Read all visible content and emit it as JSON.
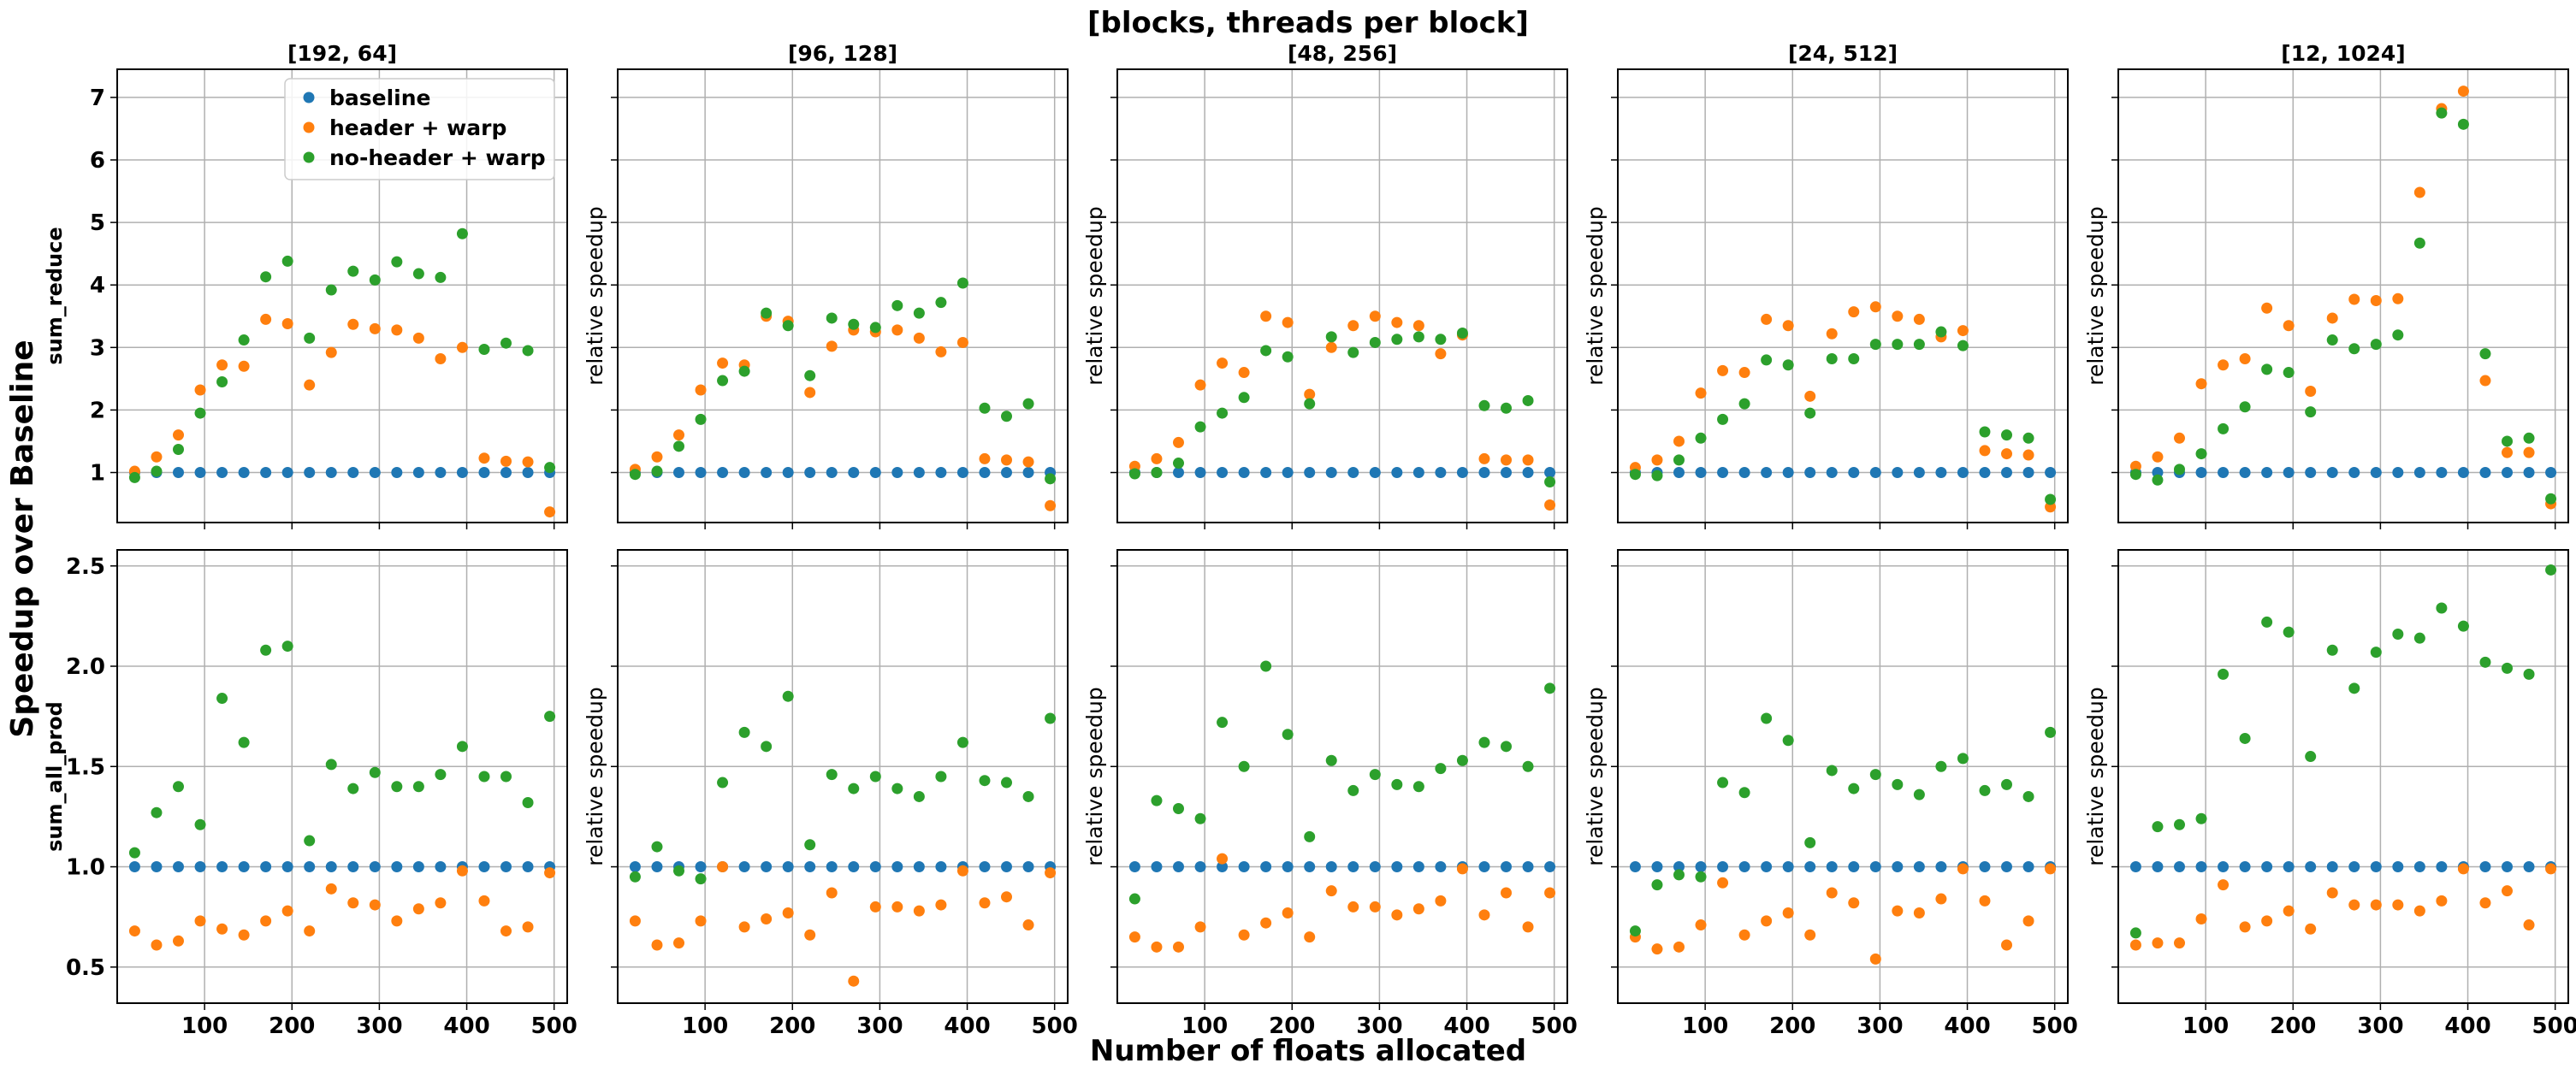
{
  "figure": {
    "suptitle": "[blocks, threads per block]",
    "supxlabel": "Number of floats allocated",
    "supylabel": "Speedup over Baseline"
  },
  "colors": {
    "baseline": "#1f77b4",
    "header_warp": "#ff7f0e",
    "noheader_warp": "#2ca02c",
    "grid": "#b0b0b0",
    "axes": "#000000"
  },
  "legend": {
    "placement": "upper-right of first panel",
    "entries": [
      "baseline",
      "header + warp",
      "no-header + warp"
    ]
  },
  "chart_data": {
    "type": "scatter",
    "grid": true,
    "x": [
      20,
      45,
      70,
      95,
      120,
      145,
      170,
      195,
      220,
      245,
      270,
      295,
      320,
      345,
      370,
      395,
      420,
      445,
      470,
      495
    ],
    "x_ticks": [
      100,
      200,
      300,
      400,
      500
    ],
    "x_tick_labels": [
      "100",
      "200",
      "300",
      "400",
      "500"
    ],
    "xlim": [
      0,
      515
    ],
    "columns": [
      "[192, 64]",
      "[96, 128]",
      "[48, 256]",
      "[24, 512]",
      "[12, 1024]"
    ],
    "rows": [
      {
        "label": "sum_reduce",
        "ylabel": "relative speedup",
        "ylim": [
          0.2,
          7.45
        ],
        "y_ticks": [
          1,
          2,
          3,
          4,
          5,
          6,
          7
        ],
        "y_tick_labels": [
          "1",
          "2",
          "3",
          "4",
          "5",
          "6",
          "7"
        ]
      },
      {
        "label": "sum_all_prod",
        "ylabel": "relative speedup",
        "ylim": [
          0.32,
          2.58
        ],
        "y_ticks": [
          0.5,
          1.0,
          1.5,
          2.0,
          2.5
        ],
        "y_tick_labels": [
          "0.5",
          "1.0",
          "1.5",
          "2.0",
          "2.5"
        ]
      }
    ],
    "panels": [
      {
        "row": 0,
        "col": 0,
        "series": [
          {
            "name": "baseline",
            "values": [
              1,
              1,
              1,
              1,
              1,
              1,
              1,
              1,
              1,
              1,
              1,
              1,
              1,
              1,
              1,
              1,
              1,
              1,
              1,
              1
            ]
          },
          {
            "name": "header + warp",
            "values": [
              1.02,
              1.25,
              1.6,
              2.32,
              2.72,
              2.7,
              3.45,
              3.38,
              2.4,
              2.92,
              3.37,
              3.3,
              3.28,
              3.15,
              2.82,
              3.0,
              1.23,
              1.18,
              1.17,
              0.37
            ]
          },
          {
            "name": "no-header + warp",
            "values": [
              0.92,
              1.02,
              1.37,
              1.95,
              2.45,
              3.12,
              4.13,
              4.38,
              3.15,
              3.92,
              4.22,
              4.08,
              4.37,
              4.18,
              4.12,
              4.82,
              2.97,
              3.07,
              2.95,
              1.08
            ]
          }
        ]
      },
      {
        "row": 0,
        "col": 1,
        "series": [
          {
            "name": "baseline",
            "values": [
              1,
              1,
              1,
              1,
              1,
              1,
              1,
              1,
              1,
              1,
              1,
              1,
              1,
              1,
              1,
              1,
              1,
              1,
              1,
              1
            ]
          },
          {
            "name": "header + warp",
            "values": [
              1.05,
              1.25,
              1.6,
              2.32,
              2.75,
              2.72,
              3.5,
              3.42,
              2.28,
              3.02,
              3.28,
              3.25,
              3.28,
              3.15,
              2.93,
              3.08,
              1.22,
              1.2,
              1.17,
              0.47
            ]
          },
          {
            "name": "no-header + warp",
            "values": [
              0.97,
              1.02,
              1.42,
              1.85,
              2.47,
              2.62,
              3.55,
              3.35,
              2.55,
              3.47,
              3.37,
              3.32,
              3.67,
              3.55,
              3.72,
              4.03,
              2.03,
              1.9,
              2.1,
              0.9
            ]
          }
        ]
      },
      {
        "row": 0,
        "col": 2,
        "series": [
          {
            "name": "baseline",
            "values": [
              1,
              1,
              1,
              1,
              1,
              1,
              1,
              1,
              1,
              1,
              1,
              1,
              1,
              1,
              1,
              1,
              1,
              1,
              1,
              1
            ]
          },
          {
            "name": "header + warp",
            "values": [
              1.1,
              1.22,
              1.48,
              2.4,
              2.75,
              2.6,
              3.5,
              3.4,
              2.25,
              3.0,
              3.35,
              3.5,
              3.4,
              3.35,
              2.9,
              3.2,
              1.22,
              1.2,
              1.2,
              0.48
            ]
          },
          {
            "name": "no-header + warp",
            "values": [
              0.98,
              1.0,
              1.15,
              1.73,
              1.95,
              2.2,
              2.95,
              2.85,
              2.1,
              3.17,
              2.92,
              3.08,
              3.13,
              3.17,
              3.13,
              3.23,
              2.07,
              2.03,
              2.15,
              0.85
            ]
          }
        ]
      },
      {
        "row": 0,
        "col": 3,
        "series": [
          {
            "name": "baseline",
            "values": [
              1,
              1,
              1,
              1,
              1,
              1,
              1,
              1,
              1,
              1,
              1,
              1,
              1,
              1,
              1,
              1,
              1,
              1,
              1,
              1
            ]
          },
          {
            "name": "header + warp",
            "values": [
              1.08,
              1.2,
              1.5,
              2.27,
              2.63,
              2.6,
              3.45,
              3.35,
              2.22,
              3.22,
              3.57,
              3.65,
              3.5,
              3.45,
              3.17,
              3.27,
              1.35,
              1.3,
              1.28,
              0.45
            ]
          },
          {
            "name": "no-header + warp",
            "values": [
              0.97,
              0.95,
              1.2,
              1.55,
              1.85,
              2.1,
              2.8,
              2.72,
              1.95,
              2.82,
              2.82,
              3.05,
              3.05,
              3.05,
              3.25,
              3.03,
              1.65,
              1.6,
              1.55,
              0.57
            ]
          }
        ]
      },
      {
        "row": 0,
        "col": 4,
        "series": [
          {
            "name": "baseline",
            "values": [
              1,
              1,
              1,
              1,
              1,
              1,
              1,
              1,
              1,
              1,
              1,
              1,
              1,
              1,
              1,
              1,
              1,
              1,
              1,
              1
            ]
          },
          {
            "name": "header + warp",
            "values": [
              1.1,
              1.25,
              1.55,
              2.42,
              2.72,
              2.82,
              3.63,
              3.35,
              2.3,
              3.47,
              3.77,
              3.75,
              3.78,
              5.48,
              6.82,
              7.1,
              2.47,
              1.32,
              1.32,
              0.5
            ]
          },
          {
            "name": "no-header + warp",
            "values": [
              0.97,
              0.88,
              1.05,
              1.3,
              1.7,
              2.05,
              2.65,
              2.6,
              1.97,
              3.12,
              2.98,
              3.05,
              3.2,
              4.67,
              6.75,
              6.57,
              2.9,
              1.5,
              1.55,
              0.58
            ]
          }
        ]
      },
      {
        "row": 1,
        "col": 0,
        "series": [
          {
            "name": "baseline",
            "values": [
              1,
              1,
              1,
              1,
              1,
              1,
              1,
              1,
              1,
              1,
              1,
              1,
              1,
              1,
              1,
              1,
              1,
              1,
              1,
              1
            ]
          },
          {
            "name": "header + warp",
            "values": [
              0.68,
              0.61,
              0.63,
              0.73,
              0.69,
              0.66,
              0.73,
              0.78,
              0.68,
              0.89,
              0.82,
              0.81,
              0.73,
              0.79,
              0.82,
              0.98,
              0.83,
              0.68,
              0.7,
              0.97
            ]
          },
          {
            "name": "no-header + warp",
            "values": [
              1.07,
              1.27,
              1.4,
              1.21,
              1.84,
              1.62,
              2.08,
              2.1,
              1.13,
              1.51,
              1.39,
              1.47,
              1.4,
              1.4,
              1.46,
              1.6,
              1.45,
              1.45,
              1.32,
              1.75
            ]
          }
        ]
      },
      {
        "row": 1,
        "col": 1,
        "series": [
          {
            "name": "baseline",
            "values": [
              1,
              1,
              1,
              1,
              1,
              1,
              1,
              1,
              1,
              1,
              1,
              1,
              1,
              1,
              1,
              1,
              1,
              1,
              1,
              1
            ]
          },
          {
            "name": "header + warp",
            "values": [
              0.73,
              0.61,
              0.62,
              0.73,
              1.0,
              0.7,
              0.74,
              0.77,
              0.66,
              0.87,
              0.43,
              0.8,
              0.8,
              0.78,
              0.81,
              0.98,
              0.82,
              0.85,
              0.71,
              0.97
            ]
          },
          {
            "name": "no-header + warp",
            "values": [
              0.95,
              1.1,
              0.98,
              0.94,
              1.42,
              1.67,
              1.6,
              1.85,
              1.11,
              1.46,
              1.39,
              1.45,
              1.39,
              1.35,
              1.45,
              1.62,
              1.43,
              1.42,
              1.35,
              1.74
            ]
          }
        ]
      },
      {
        "row": 1,
        "col": 2,
        "series": [
          {
            "name": "baseline",
            "values": [
              1,
              1,
              1,
              1,
              1,
              1,
              1,
              1,
              1,
              1,
              1,
              1,
              1,
              1,
              1,
              1,
              1,
              1,
              1,
              1
            ]
          },
          {
            "name": "header + warp",
            "values": [
              0.65,
              0.6,
              0.6,
              0.7,
              1.04,
              0.66,
              0.72,
              0.77,
              0.65,
              0.88,
              0.8,
              0.8,
              0.76,
              0.79,
              0.83,
              0.99,
              0.76,
              0.87,
              0.7,
              0.87
            ]
          },
          {
            "name": "no-header + warp",
            "values": [
              0.84,
              1.33,
              1.29,
              1.24,
              1.72,
              1.5,
              2.0,
              1.66,
              1.15,
              1.53,
              1.38,
              1.46,
              1.41,
              1.4,
              1.49,
              1.53,
              1.62,
              1.6,
              1.5,
              1.89
            ]
          }
        ]
      },
      {
        "row": 1,
        "col": 3,
        "series": [
          {
            "name": "baseline",
            "values": [
              1,
              1,
              1,
              1,
              1,
              1,
              1,
              1,
              1,
              1,
              1,
              1,
              1,
              1,
              1,
              1,
              1,
              1,
              1,
              1
            ]
          },
          {
            "name": "header + warp",
            "values": [
              0.65,
              0.59,
              0.6,
              0.71,
              0.92,
              0.66,
              0.73,
              0.77,
              0.66,
              0.87,
              0.82,
              0.54,
              0.78,
              0.77,
              0.84,
              0.99,
              0.83,
              0.61,
              0.73,
              0.99
            ]
          },
          {
            "name": "no-header + warp",
            "values": [
              0.68,
              0.91,
              0.96,
              0.95,
              1.42,
              1.37,
              1.74,
              1.63,
              1.12,
              1.48,
              1.39,
              1.46,
              1.41,
              1.36,
              1.5,
              1.54,
              1.38,
              1.41,
              1.35,
              1.67
            ]
          }
        ]
      },
      {
        "row": 1,
        "col": 4,
        "series": [
          {
            "name": "baseline",
            "values": [
              1,
              1,
              1,
              1,
              1,
              1,
              1,
              1,
              1,
              1,
              1,
              1,
              1,
              1,
              1,
              1,
              1,
              1,
              1,
              1
            ]
          },
          {
            "name": "header + warp",
            "values": [
              0.61,
              0.62,
              0.62,
              0.74,
              0.91,
              0.7,
              0.73,
              0.78,
              0.69,
              0.87,
              0.81,
              0.81,
              0.81,
              0.78,
              0.83,
              0.99,
              0.82,
              0.88,
              0.71,
              0.99
            ]
          },
          {
            "name": "no-header + warp",
            "values": [
              0.67,
              1.2,
              1.21,
              1.24,
              1.96,
              1.64,
              2.22,
              2.17,
              1.55,
              2.08,
              1.89,
              2.07,
              2.16,
              2.14,
              2.29,
              2.2,
              2.02,
              1.99,
              1.96,
              2.48
            ]
          }
        ]
      }
    ]
  }
}
